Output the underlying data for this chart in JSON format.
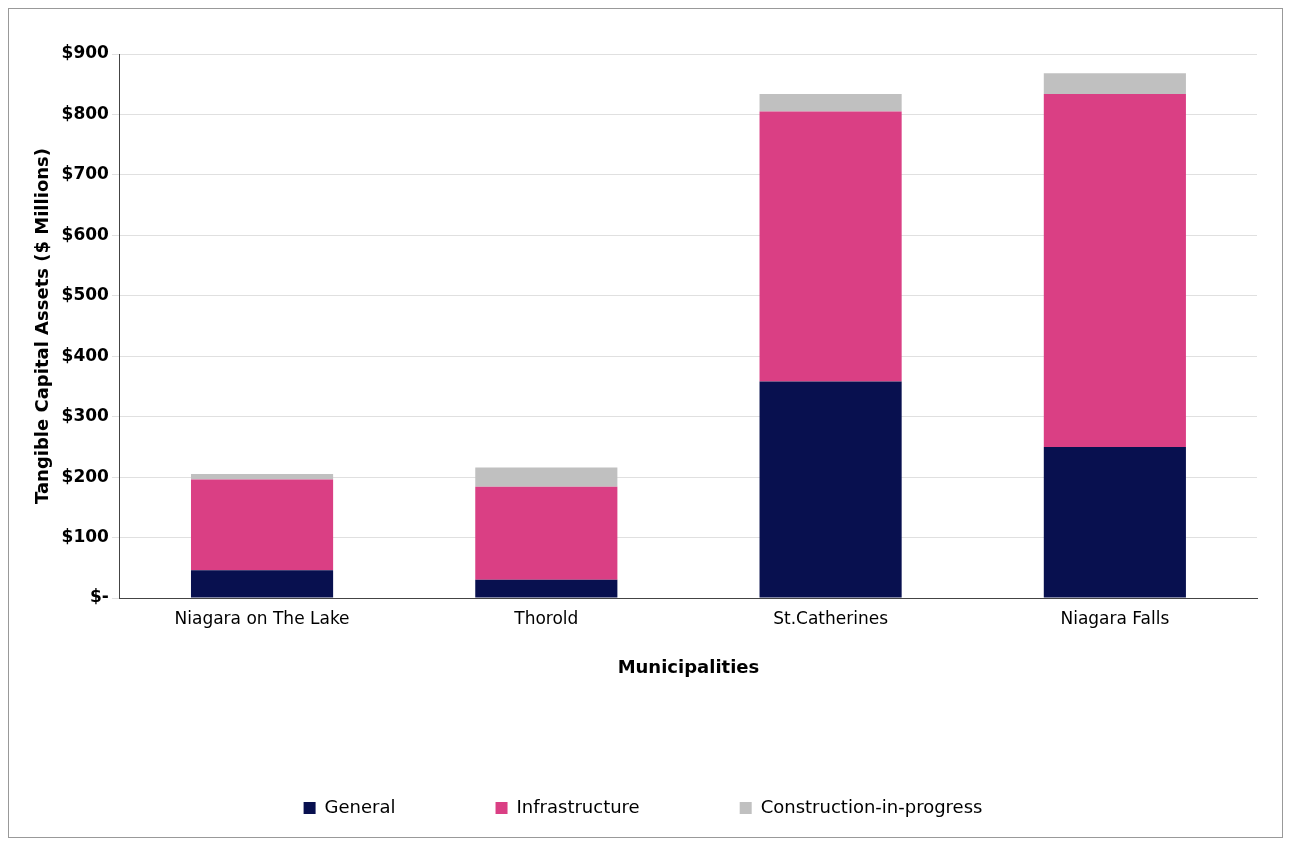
{
  "chart_data": {
    "type": "bar",
    "stacked": true,
    "xlabel": "Municipalities",
    "ylabel": "Tangible Capital Assets ($ Millions)",
    "categories": [
      "Niagara on The Lake",
      "Thorold",
      "St.Catherines",
      "Niagara Falls"
    ],
    "series": [
      {
        "name": "General",
        "color": "#08104f",
        "values": [
          46,
          30,
          358,
          250
        ]
      },
      {
        "name": "Infrastructure",
        "color": "#da3f84",
        "values": [
          150,
          154,
          447,
          584
        ]
      },
      {
        "name": "Construction-in-progress",
        "color": "#c0c0c0",
        "values": [
          9,
          32,
          29,
          34
        ]
      }
    ],
    "ylim": [
      0,
      900
    ],
    "yticks": [
      {
        "value": 0,
        "label": "$-"
      },
      {
        "value": 100,
        "label": "$100"
      },
      {
        "value": 200,
        "label": "$200"
      },
      {
        "value": 300,
        "label": "$300"
      },
      {
        "value": 400,
        "label": "$400"
      },
      {
        "value": 500,
        "label": "$500"
      },
      {
        "value": 600,
        "label": "$600"
      },
      {
        "value": 700,
        "label": "$700"
      },
      {
        "value": 800,
        "label": "$800"
      },
      {
        "value": 900,
        "label": "$900"
      }
    ],
    "grid": "y",
    "legend": "bottom"
  }
}
